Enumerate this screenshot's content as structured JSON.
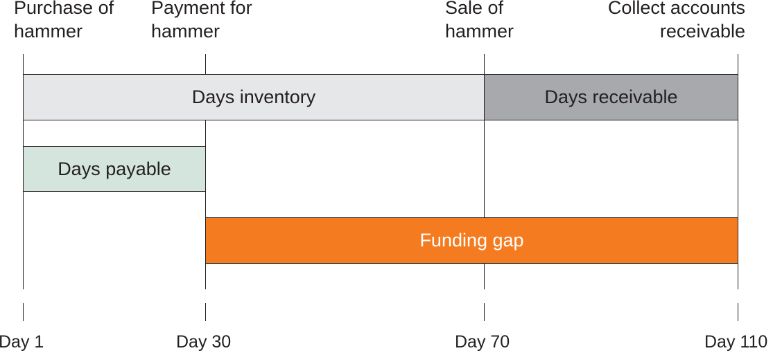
{
  "events": [
    {
      "day": 1,
      "label": "Purchase of\nhammer",
      "day_label": "Day 1"
    },
    {
      "day": 30,
      "label": "Payment for\nhammer",
      "day_label": "Day 30"
    },
    {
      "day": 70,
      "label": "Sale of\nhammer",
      "day_label": "Day 70"
    },
    {
      "day": 110,
      "label": "Collect accounts\nreceivable",
      "day_label": "Day 110"
    }
  ],
  "bars": [
    {
      "label": "Days inventory",
      "start_day": 1,
      "end_day": 70,
      "color": "#e6e7e8",
      "text_color": "#231f20"
    },
    {
      "label": "Days receivable",
      "start_day": 70,
      "end_day": 110,
      "color": "#a7a9ac",
      "text_color": "#231f20"
    },
    {
      "label": "Days payable",
      "start_day": 1,
      "end_day": 30,
      "color": "#d4e5dd",
      "text_color": "#231f20"
    },
    {
      "label": "Funding gap",
      "start_day": 30,
      "end_day": 110,
      "color": "#f47b20",
      "text_color": "#ffffff"
    }
  ]
}
